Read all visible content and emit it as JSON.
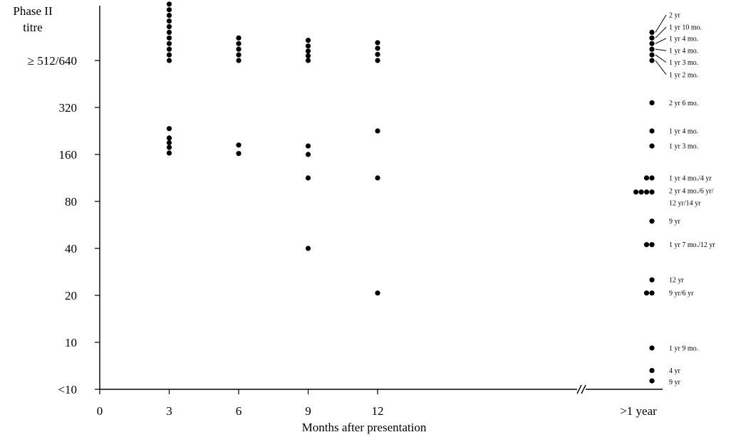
{
  "chart_data": {
    "type": "scatter",
    "ylabel": "Phase II\ntitre",
    "xlabel": "Months after presentation",
    "x_ticks": [
      {
        "x": 0,
        "label": "0"
      },
      {
        "x": 3,
        "label": "3"
      },
      {
        "x": 6,
        "label": "6"
      },
      {
        "x": 9,
        "label": "9"
      },
      {
        "x": 12,
        "label": "12"
      },
      {
        "x": 15,
        "label": ">1 year"
      }
    ],
    "y_ticks": [
      {
        "level": 0,
        "label": "<10"
      },
      {
        "level": 1,
        "label": "10"
      },
      {
        "level": 2,
        "label": "20"
      },
      {
        "level": 3,
        "label": "40"
      },
      {
        "level": 4,
        "label": "80"
      },
      {
        "level": 5,
        "label": "160"
      },
      {
        "level": 6,
        "label": "320"
      },
      {
        "level": 7,
        "label": "≥ 512/640"
      }
    ],
    "x_axis_break_after": 12,
    "xlim": [
      0,
      15.5
    ],
    "ylim": [
      0,
      8.4
    ],
    "points": [
      {
        "x": 3,
        "y": 7.0
      },
      {
        "x": 3,
        "y": 7.12
      },
      {
        "x": 3,
        "y": 7.24
      },
      {
        "x": 3,
        "y": 7.36
      },
      {
        "x": 3,
        "y": 7.48
      },
      {
        "x": 3,
        "y": 7.6
      },
      {
        "x": 3,
        "y": 7.72
      },
      {
        "x": 3,
        "y": 7.84
      },
      {
        "x": 3,
        "y": 7.96
      },
      {
        "x": 3,
        "y": 8.08
      },
      {
        "x": 3,
        "y": 8.2
      },
      {
        "x": 3,
        "y": 5.55
      },
      {
        "x": 3,
        "y": 5.35
      },
      {
        "x": 3,
        "y": 5.25
      },
      {
        "x": 3,
        "y": 5.15
      },
      {
        "x": 3,
        "y": 5.03
      },
      {
        "x": 6,
        "y": 7.0
      },
      {
        "x": 6,
        "y": 7.12
      },
      {
        "x": 6,
        "y": 7.24
      },
      {
        "x": 6,
        "y": 7.36
      },
      {
        "x": 6,
        "y": 7.48
      },
      {
        "x": 6,
        "y": 5.2
      },
      {
        "x": 6,
        "y": 5.02
      },
      {
        "x": 9,
        "y": 7.0
      },
      {
        "x": 9,
        "y": 7.1
      },
      {
        "x": 9,
        "y": 7.2
      },
      {
        "x": 9,
        "y": 7.31
      },
      {
        "x": 9,
        "y": 7.43
      },
      {
        "x": 9,
        "y": 5.18
      },
      {
        "x": 9,
        "y": 5.0
      },
      {
        "x": 9,
        "y": 4.5
      },
      {
        "x": 9,
        "y": 3.0
      },
      {
        "x": 12,
        "y": 7.0
      },
      {
        "x": 12,
        "y": 7.13
      },
      {
        "x": 12,
        "y": 7.26
      },
      {
        "x": 12,
        "y": 7.38
      },
      {
        "x": 12,
        "y": 5.5
      },
      {
        "x": 12,
        "y": 4.5
      },
      {
        "x": 12,
        "y": 2.05
      }
    ],
    "late_points": [
      {
        "y": 7.0,
        "count": 1
      },
      {
        "y": 7.12,
        "count": 1
      },
      {
        "y": 7.24,
        "count": 1
      },
      {
        "y": 7.36,
        "count": 1
      },
      {
        "y": 7.48,
        "count": 1
      },
      {
        "y": 7.6,
        "count": 1
      },
      {
        "y": 6.1,
        "count": 1
      },
      {
        "y": 5.5,
        "count": 1
      },
      {
        "y": 5.18,
        "count": 1
      },
      {
        "y": 4.5,
        "count": 2
      },
      {
        "y": 4.2,
        "count": 4
      },
      {
        "y": 3.58,
        "count": 1
      },
      {
        "y": 3.08,
        "count": 2
      },
      {
        "y": 2.33,
        "count": 1
      },
      {
        "y": 2.05,
        "count": 2
      },
      {
        "y": 0.88,
        "count": 1
      },
      {
        "y": 0.4,
        "count": 1
      },
      {
        "y": 0.18,
        "count": 1
      }
    ],
    "late_annotations": [
      {
        "text": "2 yr",
        "y": 7.97,
        "leader_to": 7.6
      },
      {
        "text": "1 yr 10 mo.",
        "y": 7.71,
        "leader_to": 7.48
      },
      {
        "text": "1 yr 4 mo.",
        "y": 7.47,
        "leader_to": 7.36
      },
      {
        "text": "1 yr 4 mo.",
        "y": 7.21,
        "leader_to": 7.24
      },
      {
        "text": "1 yr 3 mo.",
        "y": 6.96,
        "leader_to": 7.12
      },
      {
        "text": "1 yr 2 mo.",
        "y": 6.7,
        "leader_to": 7.0
      },
      {
        "text": "2 yr 6 mo.",
        "y": 6.1
      },
      {
        "text": "1 yr 4 mo.",
        "y": 5.5
      },
      {
        "text": "1 yr 3 mo.",
        "y": 5.18
      },
      {
        "text": "1 yr 4 mo./4 yr",
        "y": 4.5
      },
      {
        "text": "2 yr 4 mo./6 yr/",
        "y": 4.23
      },
      {
        "text": "12 yr/14 yr",
        "y": 3.97
      },
      {
        "text": "9 yr",
        "y": 3.58
      },
      {
        "text": "1 yr 7 mo./12 yr",
        "y": 3.08
      },
      {
        "text": "12 yr",
        "y": 2.33
      },
      {
        "text": "9 yr/6 yr",
        "y": 2.05
      },
      {
        "text": "1 yr 9 mo.",
        "y": 0.88
      },
      {
        "text": "4 yr",
        "y": 0.4
      },
      {
        "text": "9 yr",
        "y": 0.16
      }
    ]
  }
}
